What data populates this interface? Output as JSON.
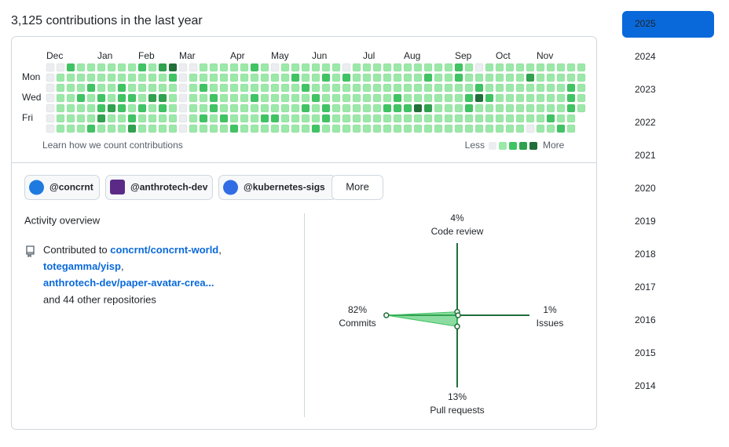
{
  "header": {
    "title": "3,125 contributions in the last year"
  },
  "contributions": {
    "months": [
      "Dec",
      "Jan",
      "Feb",
      "Mar",
      "Apr",
      "May",
      "Jun",
      "Jul",
      "Aug",
      "Sep",
      "Oct",
      "Nov"
    ],
    "weekdays": [
      "Mon",
      "Wed",
      "Fri"
    ],
    "level_colors": [
      "#ebedf0",
      "#9be9a8",
      "#40c463",
      "#30a14e",
      "#216e39"
    ],
    "rows": [
      [
        0,
        0,
        2,
        1,
        1,
        1,
        1,
        1,
        1,
        2,
        1,
        3,
        4,
        0,
        0,
        1,
        1,
        1,
        1,
        1,
        2,
        1,
        0,
        1,
        1,
        1,
        1,
        1,
        1,
        0,
        1,
        1,
        1,
        1,
        1,
        1,
        1,
        1,
        1,
        1,
        2,
        1,
        0,
        1,
        1,
        1,
        1,
        1,
        1,
        1,
        1,
        1,
        1
      ],
      [
        0,
        1,
        1,
        1,
        1,
        1,
        1,
        1,
        1,
        1,
        1,
        1,
        2,
        0,
        1,
        1,
        1,
        1,
        1,
        1,
        1,
        1,
        1,
        1,
        2,
        1,
        1,
        2,
        1,
        2,
        1,
        1,
        1,
        1,
        1,
        1,
        1,
        2,
        1,
        1,
        2,
        1,
        1,
        1,
        1,
        1,
        1,
        3,
        1,
        1,
        1,
        1,
        1
      ],
      [
        0,
        1,
        1,
        1,
        2,
        1,
        1,
        2,
        1,
        1,
        1,
        1,
        1,
        0,
        1,
        2,
        1,
        1,
        1,
        1,
        1,
        1,
        1,
        1,
        1,
        2,
        1,
        1,
        1,
        1,
        1,
        1,
        1,
        1,
        1,
        1,
        1,
        1,
        1,
        1,
        1,
        1,
        2,
        1,
        1,
        1,
        1,
        1,
        1,
        1,
        1,
        2,
        1
      ],
      [
        0,
        1,
        1,
        2,
        1,
        2,
        1,
        2,
        2,
        1,
        3,
        3,
        1,
        0,
        1,
        1,
        2,
        1,
        1,
        1,
        2,
        1,
        1,
        1,
        1,
        1,
        2,
        1,
        1,
        1,
        1,
        1,
        1,
        1,
        2,
        1,
        1,
        1,
        1,
        1,
        1,
        2,
        4,
        2,
        1,
        1,
        1,
        1,
        1,
        1,
        1,
        2,
        1
      ],
      [
        0,
        1,
        1,
        1,
        1,
        2,
        3,
        2,
        1,
        2,
        1,
        2,
        1,
        0,
        1,
        1,
        2,
        1,
        1,
        1,
        1,
        1,
        1,
        1,
        1,
        2,
        1,
        2,
        1,
        1,
        1,
        1,
        1,
        2,
        2,
        2,
        4,
        3,
        1,
        1,
        1,
        2,
        1,
        1,
        1,
        1,
        1,
        1,
        1,
        1,
        1,
        2,
        1
      ],
      [
        0,
        1,
        1,
        1,
        1,
        3,
        1,
        1,
        2,
        1,
        1,
        1,
        1,
        0,
        1,
        2,
        1,
        2,
        1,
        1,
        1,
        2,
        2,
        1,
        1,
        1,
        1,
        2,
        1,
        1,
        1,
        1,
        1,
        1,
        1,
        1,
        1,
        1,
        1,
        1,
        1,
        1,
        1,
        1,
        1,
        1,
        1,
        1,
        1,
        2,
        1,
        1,
        null
      ],
      [
        0,
        1,
        1,
        1,
        2,
        1,
        1,
        1,
        3,
        1,
        1,
        1,
        1,
        0,
        1,
        1,
        1,
        1,
        2,
        1,
        1,
        1,
        1,
        1,
        1,
        1,
        2,
        1,
        1,
        1,
        1,
        1,
        1,
        1,
        1,
        1,
        1,
        1,
        1,
        1,
        1,
        1,
        1,
        1,
        1,
        1,
        1,
        0,
        1,
        1,
        2,
        1,
        null
      ]
    ],
    "learn": "Learn how we count contributions",
    "less": "Less",
    "more": "More"
  },
  "orgs": [
    "@concrnt",
    "@anthrotech-dev",
    "@kubernetes-sigs"
  ],
  "orgs_more": "More",
  "overview": {
    "title": "Activity overview",
    "lead": "Contributed to",
    "repos": [
      "concrnt/concrnt-world",
      "totegamma/yisp",
      "anthrotech-dev/paper-avatar-crea..."
    ],
    "separator": ",",
    "tail": "and 44 other repositories"
  },
  "chart_data": {
    "type": "radar",
    "categories": [
      "Code review",
      "Issues",
      "Pull requests",
      "Commits"
    ],
    "values": [
      4,
      1,
      13,
      82
    ],
    "value_labels": [
      "4%",
      "1%",
      "13%",
      "82%"
    ],
    "color": "#216e39",
    "fill": "#40c463"
  },
  "years": [
    "2025",
    "2024",
    "2023",
    "2022",
    "2021",
    "2020",
    "2019",
    "2018",
    "2017",
    "2016",
    "2015",
    "2014"
  ],
  "selected_year": "2025"
}
